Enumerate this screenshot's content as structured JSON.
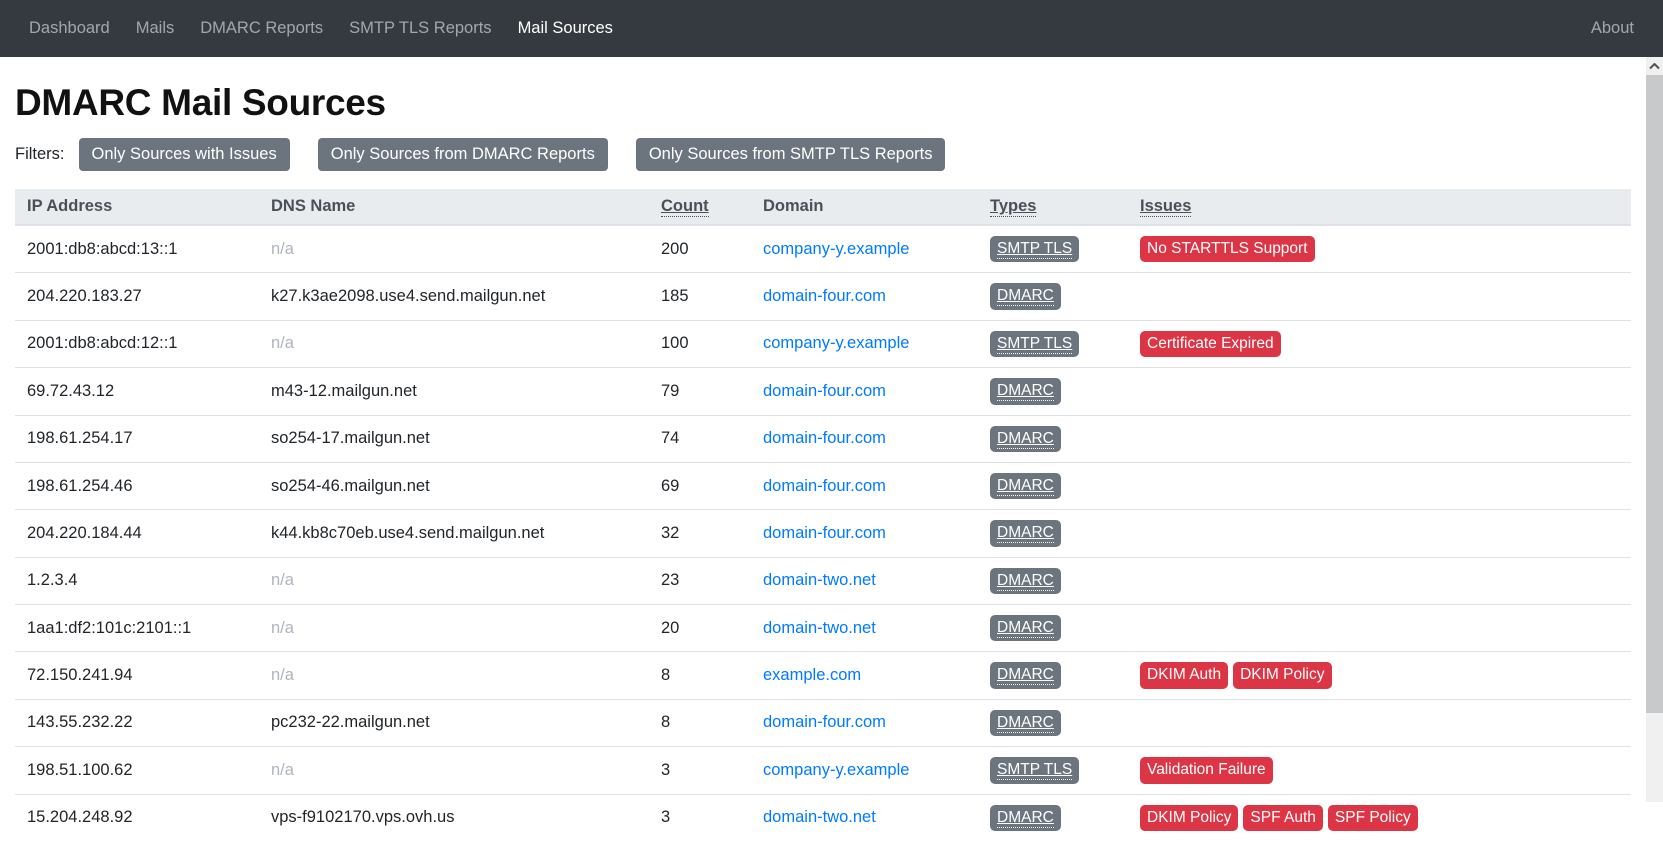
{
  "colors": {
    "navbar_bg": "#343a40",
    "navbar_link": "rgba(255,255,255,0.55)",
    "navbar_link_active": "#ffffff",
    "button_bg": "#6c757d",
    "badge_gray": "#6c757d",
    "badge_red": "#dc3545",
    "link_blue": "#007bff",
    "thead_bg": "#e9ecef",
    "thead_text": "#495057",
    "border": "#dee2e6",
    "muted_text": "#adb5bd"
  },
  "navbar": {
    "items": [
      {
        "label": "Dashboard",
        "active": false
      },
      {
        "label": "Mails",
        "active": false
      },
      {
        "label": "DMARC Reports",
        "active": false
      },
      {
        "label": "SMTP TLS Reports",
        "active": false
      },
      {
        "label": "Mail Sources",
        "active": true
      }
    ],
    "about_label": "About"
  },
  "page": {
    "title": "DMARC Mail Sources",
    "filters_label": "Filters:",
    "filter_buttons": [
      "Only Sources with Issues",
      "Only Sources from DMARC Reports",
      "Only Sources from SMTP TLS Reports"
    ]
  },
  "table": {
    "columns": [
      {
        "label": "IP Address",
        "sortable": false
      },
      {
        "label": "DNS Name",
        "sortable": false
      },
      {
        "label": "Count",
        "sortable": true
      },
      {
        "label": "Domain",
        "sortable": false
      },
      {
        "label": "Types",
        "sortable": true
      },
      {
        "label": "Issues",
        "sortable": true
      }
    ],
    "rows": [
      {
        "ip": "2001:db8:abcd:13::1",
        "dns": "n/a",
        "dns_is_na": true,
        "count": "200",
        "domain": "company-y.example",
        "types": [
          "SMTP TLS"
        ],
        "issues": [
          "No STARTTLS Support"
        ]
      },
      {
        "ip": "204.220.183.27",
        "dns": "k27.k3ae2098.use4.send.mailgun.net",
        "dns_is_na": false,
        "count": "185",
        "domain": "domain-four.com",
        "types": [
          "DMARC"
        ],
        "issues": []
      },
      {
        "ip": "2001:db8:abcd:12::1",
        "dns": "n/a",
        "dns_is_na": true,
        "count": "100",
        "domain": "company-y.example",
        "types": [
          "SMTP TLS"
        ],
        "issues": [
          "Certificate Expired"
        ]
      },
      {
        "ip": "69.72.43.12",
        "dns": "m43-12.mailgun.net",
        "dns_is_na": false,
        "count": "79",
        "domain": "domain-four.com",
        "types": [
          "DMARC"
        ],
        "issues": []
      },
      {
        "ip": "198.61.254.17",
        "dns": "so254-17.mailgun.net",
        "dns_is_na": false,
        "count": "74",
        "domain": "domain-four.com",
        "types": [
          "DMARC"
        ],
        "issues": []
      },
      {
        "ip": "198.61.254.46",
        "dns": "so254-46.mailgun.net",
        "dns_is_na": false,
        "count": "69",
        "domain": "domain-four.com",
        "types": [
          "DMARC"
        ],
        "issues": []
      },
      {
        "ip": "204.220.184.44",
        "dns": "k44.kb8c70eb.use4.send.mailgun.net",
        "dns_is_na": false,
        "count": "32",
        "domain": "domain-four.com",
        "types": [
          "DMARC"
        ],
        "issues": []
      },
      {
        "ip": "1.2.3.4",
        "dns": "n/a",
        "dns_is_na": true,
        "count": "23",
        "domain": "domain-two.net",
        "types": [
          "DMARC"
        ],
        "issues": []
      },
      {
        "ip": "1aa1:df2:101c:2101::1",
        "dns": "n/a",
        "dns_is_na": true,
        "count": "20",
        "domain": "domain-two.net",
        "types": [
          "DMARC"
        ],
        "issues": []
      },
      {
        "ip": "72.150.241.94",
        "dns": "n/a",
        "dns_is_na": true,
        "count": "8",
        "domain": "example.com",
        "types": [
          "DMARC"
        ],
        "issues": [
          "DKIM Auth",
          "DKIM Policy"
        ]
      },
      {
        "ip": "143.55.232.22",
        "dns": "pc232-22.mailgun.net",
        "dns_is_na": false,
        "count": "8",
        "domain": "domain-four.com",
        "types": [
          "DMARC"
        ],
        "issues": []
      },
      {
        "ip": "198.51.100.62",
        "dns": "n/a",
        "dns_is_na": true,
        "count": "3",
        "domain": "company-y.example",
        "types": [
          "SMTP TLS"
        ],
        "issues": [
          "Validation Failure"
        ]
      },
      {
        "ip": "15.204.248.92",
        "dns": "vps-f9102170.vps.ovh.us",
        "dns_is_na": false,
        "count": "3",
        "domain": "domain-two.net",
        "types": [
          "DMARC"
        ],
        "issues": [
          "DKIM Policy",
          "SPF Auth",
          "SPF Policy"
        ]
      }
    ]
  }
}
